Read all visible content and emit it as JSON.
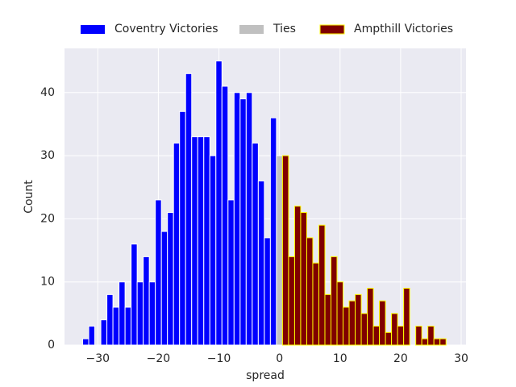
{
  "chart_data": {
    "type": "histogram",
    "xlabel": "spread",
    "ylabel": "Count",
    "xlim": [
      -35.5,
      30.8
    ],
    "ylim": [
      0,
      47
    ],
    "xticks": [
      {
        "value": -30,
        "label": "−30"
      },
      {
        "value": -20,
        "label": "−20"
      },
      {
        "value": -10,
        "label": "−10"
      },
      0,
      10,
      20,
      30
    ],
    "yticks": [
      0,
      10,
      20,
      30,
      40
    ],
    "grid": true,
    "legend": "top",
    "series": [
      {
        "name": "Coventry Victories",
        "color": "#0000ff",
        "edgecolor": "#ffffff",
        "bins": [
          -32.5,
          -31.5,
          -30.5,
          -29.5,
          -28.5,
          -27.5,
          -26.5,
          -25.5,
          -24.5,
          -23.5,
          -22.5,
          -21.5,
          -20.5,
          -19.5,
          -18.5,
          -17.5,
          -16.5,
          -15.5,
          -14.5,
          -13.5,
          -12.5,
          -11.5,
          -10.5,
          -9.5,
          -8.5,
          -7.5,
          -6.5,
          -5.5,
          -4.5,
          -3.5,
          -2.5,
          -1.5,
          -0.5
        ],
        "values": [
          1,
          3,
          0,
          4,
          8,
          6,
          10,
          6,
          16,
          10,
          14,
          10,
          23,
          18,
          21,
          32,
          37,
          43,
          33,
          33,
          33,
          30,
          45,
          41,
          23,
          40,
          39,
          40,
          32,
          26,
          17,
          36
        ]
      },
      {
        "name": "Ties",
        "color": "#c0c0c0",
        "edgecolor": "#ffffff",
        "bins": [
          -0.5,
          0.5
        ],
        "values": [
          30
        ]
      },
      {
        "name": "Ampthill Victories",
        "color": "#800000",
        "edgecolor": "#ffff00",
        "bins": [
          0.5,
          1.5,
          2.5,
          3.5,
          4.5,
          5.5,
          6.5,
          7.5,
          8.5,
          9.5,
          10.5,
          11.5,
          12.5,
          13.5,
          14.5,
          15.5,
          16.5,
          17.5,
          18.5,
          19.5,
          20.5,
          21.5,
          22.5,
          23.5,
          24.5,
          25.5,
          26.5,
          27.5
        ],
        "values": [
          30,
          14,
          22,
          21,
          17,
          13,
          19,
          8,
          14,
          10,
          6,
          7,
          8,
          5,
          9,
          3,
          7,
          2,
          5,
          3,
          9,
          0,
          3,
          1,
          3,
          1,
          1
        ]
      }
    ]
  }
}
